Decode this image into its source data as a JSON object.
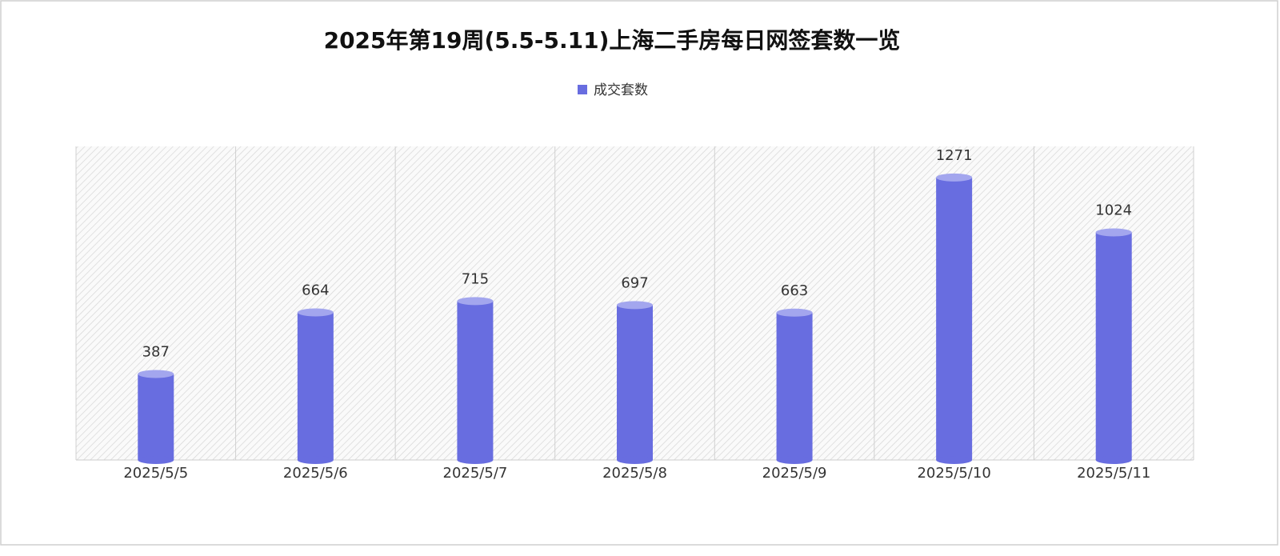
{
  "chart_data": {
    "type": "bar",
    "title": "2025年第19周(5.5-5.11)上海二手房每日网签套数一览",
    "categories": [
      "2025/5/5",
      "2025/5/6",
      "2025/5/7",
      "2025/5/8",
      "2025/5/9",
      "2025/5/10",
      "2025/5/11"
    ],
    "series": [
      {
        "name": "成交套数",
        "color": "#686de0",
        "values": [
          387,
          664,
          715,
          697,
          663,
          1271,
          1024
        ]
      }
    ],
    "ylim": [
      0,
      1400
    ]
  }
}
